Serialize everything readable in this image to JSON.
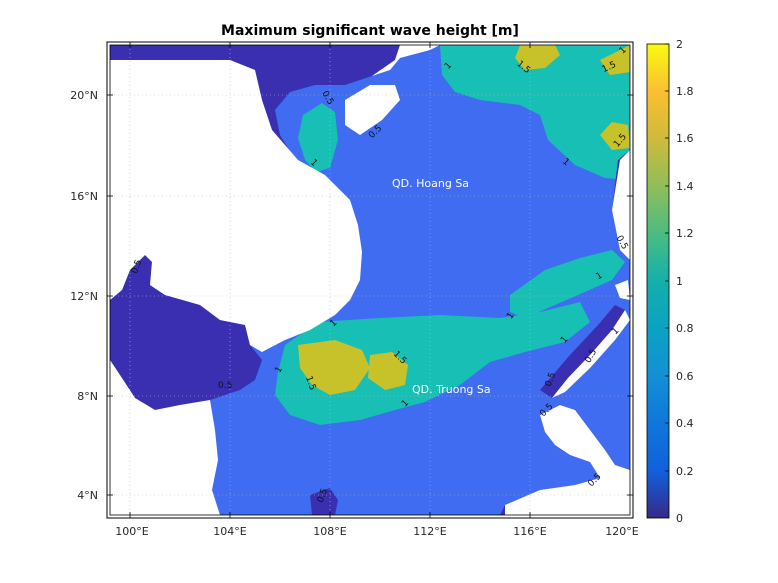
{
  "title": "Maximum significant wave height [m]",
  "x_ticks": [
    "100°E",
    "104°E",
    "108°E",
    "112°E",
    "116°E",
    "120°E"
  ],
  "y_ticks": [
    "20°N",
    "16°N",
    "12°N",
    "8°N",
    "4°N"
  ],
  "colorbar": {
    "ticks": [
      "2",
      "1.8",
      "1.6",
      "1.4",
      "1.2",
      "1",
      "0.8",
      "0.6",
      "0.4",
      "0.2",
      "0"
    ],
    "range": [
      0,
      2
    ],
    "colormap": "parula"
  },
  "place_labels": {
    "hoang_sa": "QD. Hoang Sa",
    "truong_sa": "QD. Truong Sa"
  },
  "contour_labels": [
    "0.5",
    "1",
    "1.5"
  ],
  "colors": {
    "land": "#ffffff",
    "band_0_0.5": "#3a2fb0",
    "band_0.5_1": "#3f6cf0",
    "band_1_1.5": "#17bfb4",
    "band_1.5_2": "#c8c22a",
    "grid": "#bdbdbd"
  }
}
